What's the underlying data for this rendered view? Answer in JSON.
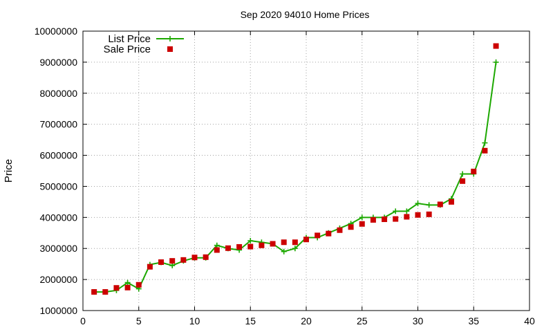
{
  "chart_data": {
    "type": "line",
    "title": "Sep 2020 94010 Home Prices",
    "xlabel": "",
    "ylabel": "Price",
    "xlim": [
      0,
      40
    ],
    "ylim": [
      1000000,
      10000000
    ],
    "xticks": [
      0,
      5,
      10,
      15,
      20,
      25,
      30,
      35,
      40
    ],
    "yticks": [
      1000000,
      2000000,
      3000000,
      4000000,
      5000000,
      6000000,
      7000000,
      8000000,
      9000000,
      10000000
    ],
    "grid": true,
    "legend_position": "top-left",
    "series": [
      {
        "name": "List Price",
        "style": "line-with-plus-markers",
        "color": "#1ca800",
        "x": [
          1,
          2,
          3,
          4,
          5,
          6,
          7,
          8,
          9,
          10,
          11,
          12,
          13,
          14,
          15,
          16,
          17,
          18,
          19,
          20,
          21,
          22,
          23,
          24,
          25,
          26,
          27,
          28,
          29,
          30,
          31,
          32,
          33,
          34,
          35,
          36,
          37
        ],
        "values": [
          1600000,
          1600000,
          1650000,
          1900000,
          1700000,
          2480000,
          2550000,
          2450000,
          2600000,
          2700000,
          2700000,
          3100000,
          3000000,
          2950000,
          3250000,
          3200000,
          3150000,
          2900000,
          3000000,
          3350000,
          3350000,
          3500000,
          3650000,
          3800000,
          4000000,
          4000000,
          4000000,
          4200000,
          4200000,
          4450000,
          4400000,
          4400000,
          4600000,
          5400000,
          5400000,
          6400000,
          9000000
        ]
      },
      {
        "name": "Sale Price",
        "style": "square-markers",
        "color": "#cc0000",
        "x": [
          1,
          2,
          3,
          4,
          5,
          6,
          7,
          8,
          9,
          10,
          11,
          12,
          13,
          14,
          15,
          16,
          17,
          18,
          19,
          20,
          21,
          22,
          23,
          24,
          25,
          26,
          27,
          28,
          29,
          30,
          31,
          32,
          33,
          34,
          35,
          36,
          37
        ],
        "values": [
          1600000,
          1600000,
          1730000,
          1740000,
          1830000,
          2410000,
          2560000,
          2600000,
          2630000,
          2710000,
          2720000,
          2950000,
          3010000,
          3050000,
          3060000,
          3100000,
          3150000,
          3200000,
          3200000,
          3290000,
          3420000,
          3480000,
          3590000,
          3690000,
          3790000,
          3920000,
          3940000,
          3950000,
          4020000,
          4080000,
          4100000,
          4420000,
          4500000,
          5170000,
          5480000,
          6150000,
          9520000
        ]
      }
    ]
  }
}
